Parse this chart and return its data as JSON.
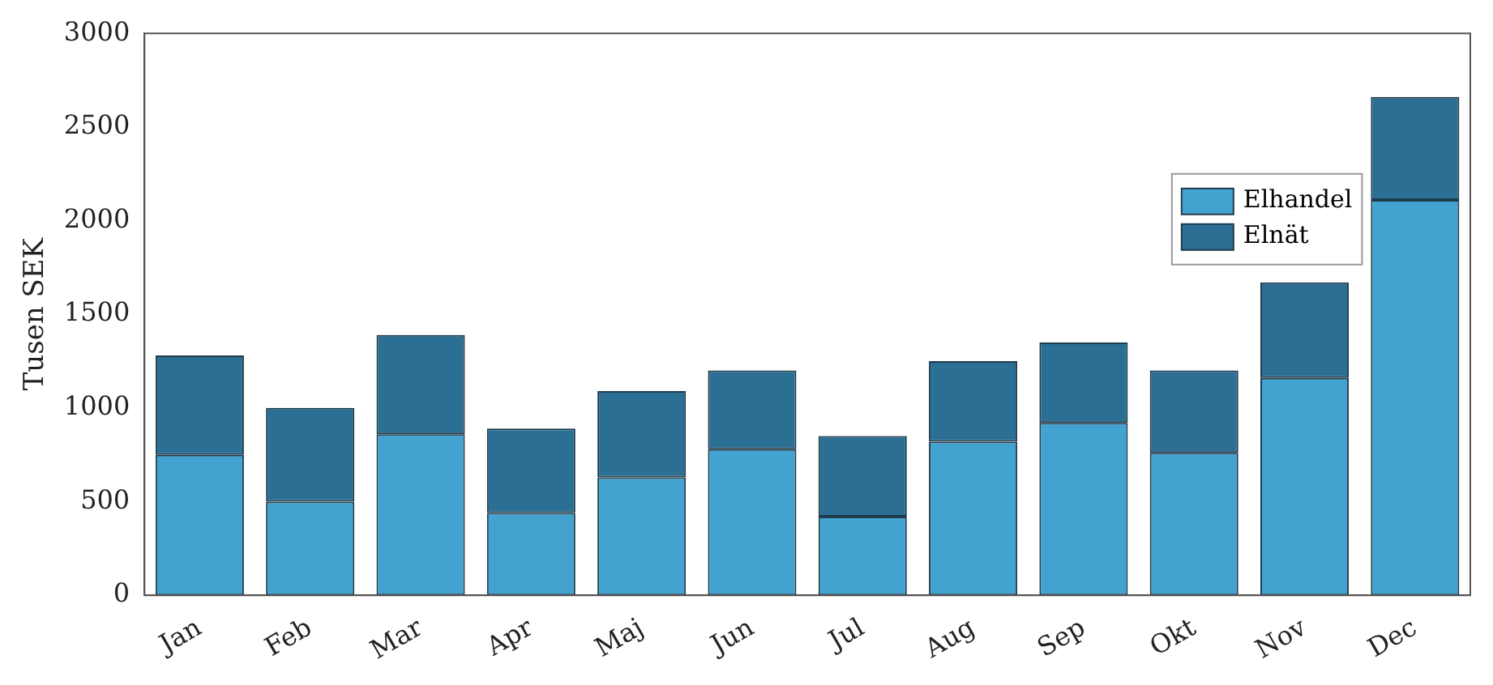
{
  "chart_data": {
    "type": "bar",
    "stacked": true,
    "ylabel": "Tusen SEK",
    "categories": [
      "Jan",
      "Feb",
      "Mar",
      "Apr",
      "Maj",
      "Jun",
      "Jul",
      "Aug",
      "Sep",
      "Okt",
      "Nov",
      "Dec"
    ],
    "series": [
      {
        "name": "Elhandel",
        "color": "#42a3d1",
        "values": [
          750,
          500,
          860,
          440,
          630,
          780,
          420,
          820,
          920,
          760,
          1160,
          2110
        ]
      },
      {
        "name": "Elnät",
        "color": "#2b7094",
        "values": [
          530,
          500,
          530,
          450,
          460,
          420,
          430,
          430,
          430,
          440,
          510,
          550
        ]
      }
    ],
    "ylim": [
      0,
      3000
    ],
    "yticks": [
      0,
      500,
      1000,
      1500,
      2000,
      2500,
      3000
    ],
    "grid": false,
    "legend": "right"
  }
}
